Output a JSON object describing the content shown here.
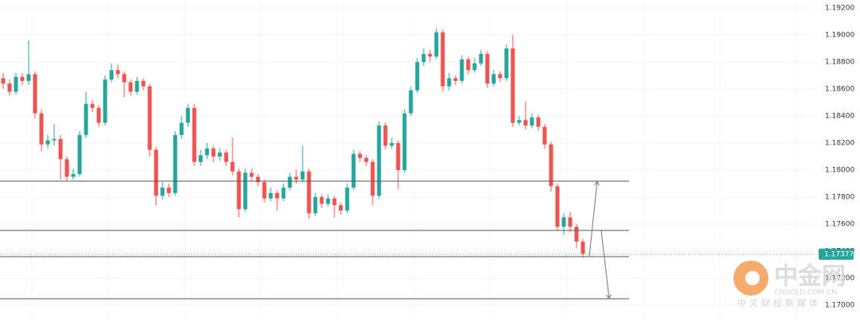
{
  "chart_data": {
    "type": "candlestick",
    "open": [
      1.1868,
      1.1864,
      1.1858,
      1.1869,
      1.1866,
      1.1871,
      1.1842,
      1.1819,
      1.1822,
      1.1823,
      1.1808,
      1.1795,
      1.1797,
      1.1826,
      1.1849,
      1.1846,
      1.1835,
      1.1867,
      1.1874,
      1.1871,
      1.1865,
      1.1858,
      1.1866,
      1.1862,
      1.1815,
      1.1781,
      1.1787,
      1.1783,
      1.1826,
      1.1835,
      1.1846,
      1.1806,
      1.1811,
      1.1816,
      1.181,
      1.1813,
      1.1806,
      1.1799,
      1.1771,
      1.1798,
      1.1795,
      1.1791,
      1.1779,
      1.1783,
      1.1779,
      1.1787,
      1.1795,
      1.1793,
      1.1799,
      1.1768,
      1.178,
      1.1775,
      1.1779,
      1.1774,
      1.177,
      1.1787,
      1.1812,
      1.1809,
      1.1806,
      1.1781,
      1.1833,
      1.1818,
      1.182,
      1.18,
      1.1842,
      1.1859,
      1.188,
      1.1886,
      1.1884,
      1.1902,
      1.1862,
      1.1868,
      1.1866,
      1.1882,
      1.1874,
      1.1879,
      1.1886,
      1.1864,
      1.1871,
      1.1868,
      1.189,
      1.1835,
      1.1837,
      1.1833,
      1.1839,
      1.1832,
      1.1819,
      1.1788,
      1.1758,
      1.1765,
      1.1758,
      1.1747
    ],
    "high": [
      1.1872,
      1.1867,
      1.1872,
      1.1872,
      1.1896,
      1.1873,
      1.1845,
      1.1826,
      1.1834,
      1.1826,
      1.181,
      1.1801,
      1.1829,
      1.1858,
      1.1852,
      1.1848,
      1.187,
      1.1879,
      1.1878,
      1.1873,
      1.1867,
      1.1869,
      1.1868,
      1.1864,
      1.1817,
      1.1791,
      1.179,
      1.1829,
      1.184,
      1.1849,
      1.1849,
      1.1815,
      1.182,
      1.1818,
      1.1816,
      1.1815,
      1.1824,
      1.1801,
      1.1801,
      1.1801,
      1.1797,
      1.1793,
      1.1787,
      1.1785,
      1.179,
      1.1798,
      1.18,
      1.1818,
      1.1801,
      1.1783,
      1.1782,
      1.1782,
      1.1781,
      1.1776,
      1.179,
      1.1815,
      1.1814,
      1.1811,
      1.1808,
      1.1836,
      1.1835,
      1.1824,
      1.1822,
      1.1845,
      1.1862,
      1.1883,
      1.189,
      1.1889,
      1.1905,
      1.1904,
      1.1872,
      1.187,
      1.1885,
      1.1884,
      1.1883,
      1.1889,
      1.1888,
      1.1874,
      1.1873,
      1.1893,
      1.19,
      1.184,
      1.1851,
      1.1842,
      1.1841,
      1.1834,
      1.1821,
      1.179,
      1.1768,
      1.1769,
      1.176,
      1.1749
    ],
    "low": [
      1.186,
      1.1855,
      1.1856,
      1.1863,
      1.1863,
      1.1838,
      1.1814,
      1.1816,
      1.1818,
      1.1793,
      1.1792,
      1.1793,
      1.1795,
      1.1824,
      1.1843,
      1.1832,
      1.1833,
      1.1865,
      1.1868,
      1.1854,
      1.1855,
      1.1856,
      1.1859,
      1.181,
      1.1774,
      1.1778,
      1.178,
      1.1781,
      1.1823,
      1.1832,
      1.1803,
      1.1803,
      1.1808,
      1.1806,
      1.1807,
      1.1803,
      1.1796,
      1.1765,
      1.1769,
      1.1792,
      1.1788,
      1.1776,
      1.1777,
      1.177,
      1.1777,
      1.1785,
      1.179,
      1.1791,
      1.1764,
      1.1766,
      1.1772,
      1.1773,
      1.1765,
      1.1767,
      1.1768,
      1.1785,
      1.1806,
      1.1803,
      1.1774,
      1.1779,
      1.1815,
      1.1816,
      1.1786,
      1.1798,
      1.184,
      1.1857,
      1.1877,
      1.188,
      1.1882,
      1.1858,
      1.1859,
      1.1863,
      1.1864,
      1.1871,
      1.1872,
      1.1877,
      1.1861,
      1.1862,
      1.1865,
      1.1866,
      1.1832,
      1.1833,
      1.183,
      1.1831,
      1.1829,
      1.1816,
      1.1784,
      1.1755,
      1.1752,
      1.1754,
      1.1742,
      1.1735
    ],
    "close": [
      1.1864,
      1.1858,
      1.1869,
      1.1866,
      1.1871,
      1.1842,
      1.1819,
      1.1822,
      1.1823,
      1.1808,
      1.1795,
      1.1797,
      1.1826,
      1.1849,
      1.1846,
      1.1835,
      1.1867,
      1.1874,
      1.1871,
      1.1865,
      1.1858,
      1.1866,
      1.1862,
      1.1815,
      1.1781,
      1.1787,
      1.1783,
      1.1826,
      1.1835,
      1.1846,
      1.1806,
      1.1811,
      1.1816,
      1.181,
      1.1813,
      1.1806,
      1.1799,
      1.1771,
      1.1798,
      1.1795,
      1.1791,
      1.1779,
      1.1783,
      1.1779,
      1.1787,
      1.1795,
      1.1793,
      1.1799,
      1.1768,
      1.178,
      1.1775,
      1.1779,
      1.1774,
      1.177,
      1.1787,
      1.1812,
      1.1809,
      1.1806,
      1.1781,
      1.1833,
      1.1818,
      1.182,
      1.18,
      1.1842,
      1.1859,
      1.188,
      1.1886,
      1.1884,
      1.1902,
      1.1862,
      1.1868,
      1.1866,
      1.1882,
      1.1874,
      1.1879,
      1.1886,
      1.1864,
      1.1871,
      1.1868,
      1.189,
      1.1835,
      1.1837,
      1.1833,
      1.1839,
      1.1832,
      1.1819,
      1.1788,
      1.1758,
      1.1765,
      1.1758,
      1.1747,
      1.1738
    ],
    "up_color": "#26a69a",
    "down_color": "#ef5350",
    "ylim": [
      1.16906,
      1.19259
    ],
    "yticks": [
      {
        "value": 1.17,
        "label": "1.17000"
      },
      {
        "value": 1.172,
        "label": "1.17200"
      },
      {
        "value": 1.174,
        "label": "1.17400"
      },
      {
        "value": 1.176,
        "label": "1.17600"
      },
      {
        "value": 1.178,
        "label": "1.17800"
      },
      {
        "value": 1.18,
        "label": "1.18000"
      },
      {
        "value": 1.182,
        "label": "1.18200"
      },
      {
        "value": 1.184,
        "label": "1.18400"
      },
      {
        "value": 1.186,
        "label": "1.18600"
      },
      {
        "value": 1.188,
        "label": "1.18800"
      },
      {
        "value": 1.19,
        "label": "1.19000"
      },
      {
        "value": 1.192,
        "label": "1.19200"
      }
    ],
    "grid": true,
    "levels": [
      1.17918,
      1.17553,
      1.17359,
      1.17047
    ],
    "last_price": {
      "value": 1.17377,
      "label": "1.17377"
    }
  },
  "watermark": {
    "logo": "中金网",
    "site": "CNGOLD.COM.CN",
    "slogan": "中文财经新媒体"
  }
}
